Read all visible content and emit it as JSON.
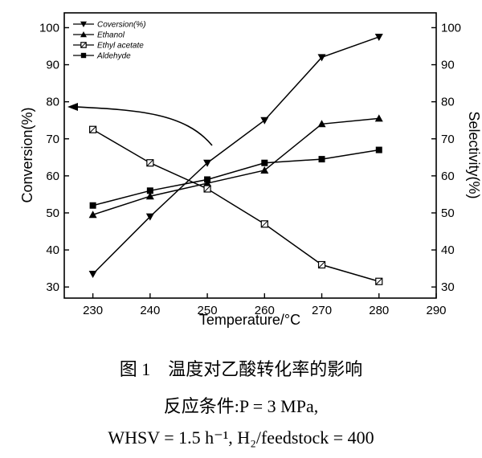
{
  "chart_data": {
    "type": "line",
    "xlabel": "Temperature/°C",
    "ylabel_left": "Conversion(%)",
    "ylabel_right": "Selectivity(%)",
    "xlim": [
      225,
      290
    ],
    "ylim": [
      27,
      104
    ],
    "x_ticks": [
      230,
      240,
      250,
      260,
      270,
      280,
      290
    ],
    "y_ticks": [
      30,
      40,
      50,
      60,
      70,
      80,
      90,
      100
    ],
    "grid": false,
    "legend_position": "top-left",
    "x": [
      230,
      240,
      250,
      260,
      270,
      280
    ],
    "series": [
      {
        "name": "Coversion(%)",
        "marker": "triangle-down",
        "values": [
          33.5,
          49,
          63.5,
          75,
          92,
          97.5
        ]
      },
      {
        "name": "Ethanol",
        "marker": "triangle-up",
        "values": [
          49.5,
          54.5,
          58,
          61.5,
          74,
          75.5
        ]
      },
      {
        "name": "Ethyl acetate",
        "marker": "square-crossed",
        "values": [
          72.5,
          63.5,
          56.5,
          47,
          36,
          31.5
        ]
      },
      {
        "name": "Aldehyde",
        "marker": "square-filled",
        "values": [
          52,
          56,
          59,
          63.5,
          64.5,
          67
        ]
      }
    ]
  },
  "caption": {
    "line1": "图 1　温度对乙酸转化率的影响",
    "line2": "反应条件:P = 3 MPa,",
    "line3": "WHSV = 1.5 h⁻¹, H₂/feedstock = 400"
  }
}
